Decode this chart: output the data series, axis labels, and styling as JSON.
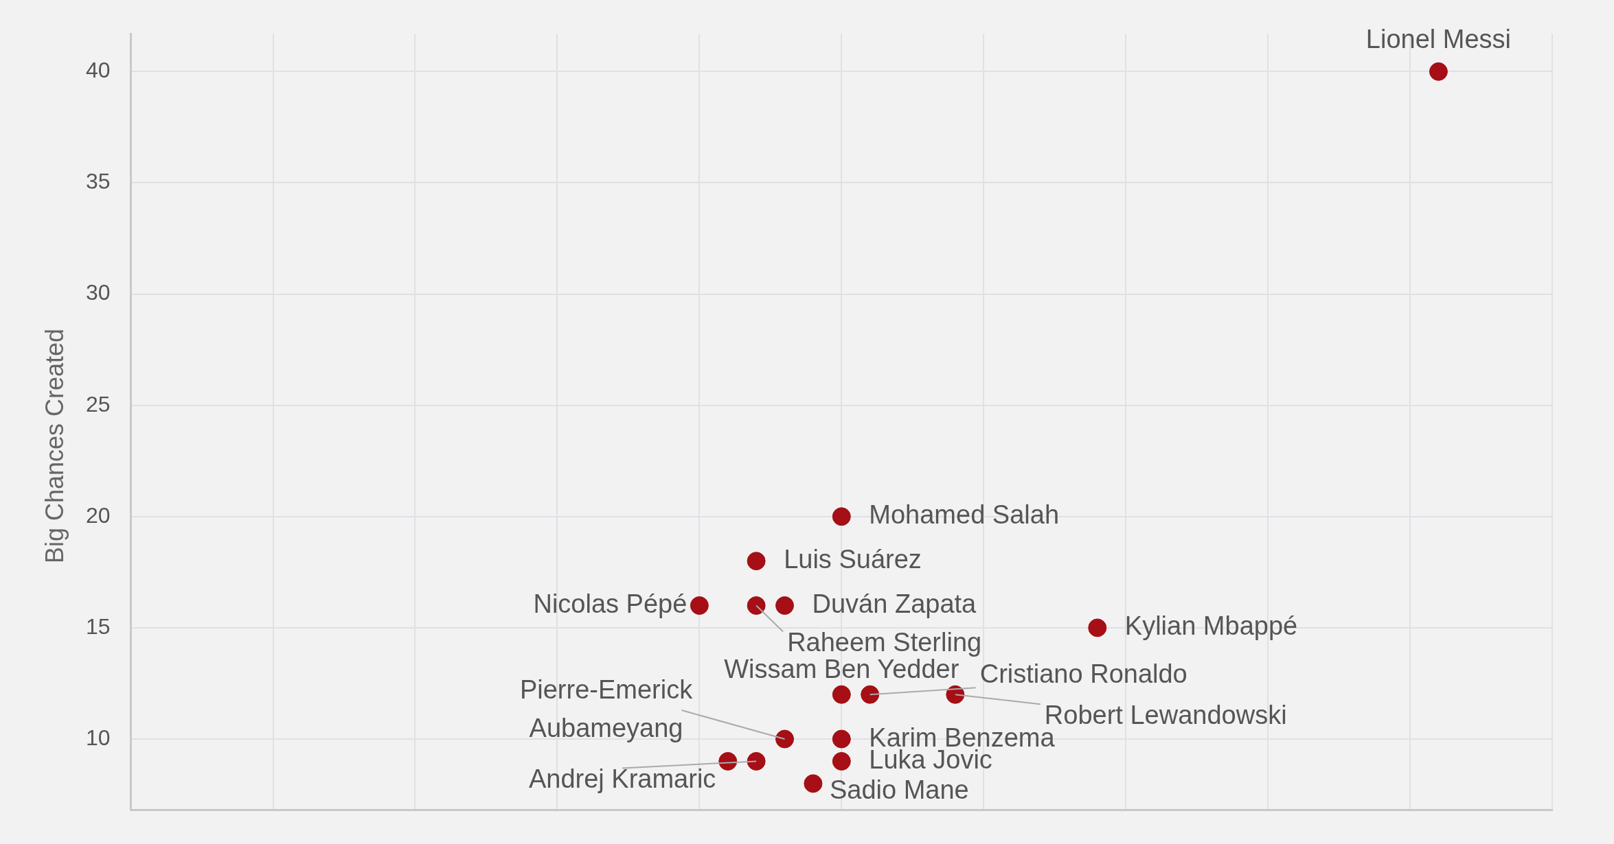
{
  "chart_data": {
    "type": "scatter",
    "ylabel": "Big Chances Created",
    "categories": [
      null,
      null,
      null,
      null,
      null,
      null,
      null,
      null,
      null,
      null,
      null,
      null,
      null,
      null,
      null,
      null,
      null,
      null,
      null,
      null,
      null,
      null,
      null,
      null,
      null,
      null,
      null,
      null,
      null,
      null,
      null,
      null,
      null,
      null,
      null,
      null,
      null,
      null,
      null,
      null,
      null,
      null,
      null,
      null,
      null,
      null,
      null,
      null,
      null,
      null,
      null
    ],
    "series": [
      {
        "name": "Lionel Messi",
        "color": "#a50f15",
        "values": [
          null,
          null,
          null,
          null,
          null,
          null,
          null,
          null,
          null,
          null,
          null,
          null,
          null,
          null,
          null,
          null,
          null,
          null,
          null,
          null,
          null,
          null,
          null,
          null,
          null,
          null,
          null,
          null,
          null,
          null,
          null,
          null,
          null,
          null,
          null,
          null,
          null,
          null,
          null,
          null,
          null,
          null,
          null,
          null,
          null,
          null,
          40,
          null,
          null,
          null,
          null
        ]
      },
      {
        "name": "Mohamed Salah",
        "color": "#a50f15",
        "values": [
          null,
          null,
          null,
          null,
          null,
          null,
          null,
          null,
          null,
          null,
          null,
          null,
          null,
          null,
          null,
          null,
          null,
          null,
          null,
          null,
          null,
          null,
          null,
          null,
          null,
          20,
          null,
          null,
          null,
          null,
          null,
          null,
          null,
          null,
          null,
          null,
          null,
          null,
          null,
          null,
          null,
          null,
          null,
          null,
          null,
          null,
          null,
          null,
          null,
          null,
          null
        ]
      },
      {
        "name": "Luis Suárez",
        "color": "#a50f15",
        "values": [
          null,
          null,
          null,
          null,
          null,
          null,
          null,
          null,
          null,
          null,
          null,
          null,
          null,
          null,
          null,
          null,
          null,
          null,
          null,
          null,
          null,
          null,
          18,
          null,
          null,
          null,
          null,
          null,
          null,
          null,
          null,
          null,
          null,
          null,
          null,
          null,
          null,
          null,
          null,
          null,
          null,
          null,
          null,
          null,
          null,
          null,
          null,
          null,
          null,
          null,
          null
        ]
      },
      {
        "name": "Nicolas Pépé",
        "color": "#a50f15",
        "values": [
          null,
          null,
          null,
          null,
          null,
          null,
          null,
          null,
          null,
          null,
          null,
          null,
          null,
          null,
          null,
          null,
          null,
          null,
          null,
          null,
          16,
          null,
          null,
          null,
          null,
          null,
          null,
          null,
          null,
          null,
          null,
          null,
          null,
          null,
          null,
          null,
          null,
          null,
          null,
          null,
          null,
          null,
          null,
          null,
          null,
          null,
          null,
          null,
          null,
          null,
          null
        ]
      },
      {
        "name": "Raheem Sterling",
        "color": "#a50f15",
        "values": [
          null,
          null,
          null,
          null,
          null,
          null,
          null,
          null,
          null,
          null,
          null,
          null,
          null,
          null,
          null,
          null,
          null,
          null,
          null,
          null,
          null,
          null,
          16,
          null,
          null,
          null,
          null,
          null,
          null,
          null,
          null,
          null,
          null,
          null,
          null,
          null,
          null,
          null,
          null,
          null,
          null,
          null,
          null,
          null,
          null,
          null,
          null,
          null,
          null,
          null,
          null
        ]
      },
      {
        "name": "Duván Zapata",
        "color": "#a50f15",
        "values": [
          null,
          null,
          null,
          null,
          null,
          null,
          null,
          null,
          null,
          null,
          null,
          null,
          null,
          null,
          null,
          null,
          null,
          null,
          null,
          null,
          null,
          null,
          null,
          16,
          null,
          null,
          null,
          null,
          null,
          null,
          null,
          null,
          null,
          null,
          null,
          null,
          null,
          null,
          null,
          null,
          null,
          null,
          null,
          null,
          null,
          null,
          null,
          null,
          null,
          null,
          null
        ]
      },
      {
        "name": "Kylian Mbappé",
        "color": "#a50f15",
        "values": [
          null,
          null,
          null,
          null,
          null,
          null,
          null,
          null,
          null,
          null,
          null,
          null,
          null,
          null,
          null,
          null,
          null,
          null,
          null,
          null,
          null,
          null,
          null,
          null,
          null,
          null,
          null,
          null,
          null,
          null,
          null,
          null,
          null,
          null,
          15,
          null,
          null,
          null,
          null,
          null,
          null,
          null,
          null,
          null,
          null,
          null,
          null,
          null,
          null,
          null,
          null
        ]
      },
      {
        "name": "Wissam Ben Yedder",
        "color": "#a50f15",
        "values": [
          null,
          null,
          null,
          null,
          null,
          null,
          null,
          null,
          null,
          null,
          null,
          null,
          null,
          null,
          null,
          null,
          null,
          null,
          null,
          null,
          null,
          null,
          null,
          null,
          null,
          12,
          null,
          null,
          null,
          null,
          null,
          null,
          null,
          null,
          null,
          null,
          null,
          null,
          null,
          null,
          null,
          null,
          null,
          null,
          null,
          null,
          null,
          null,
          null,
          null,
          null
        ]
      },
      {
        "name": "Cristiano Ronaldo",
        "color": "#a50f15",
        "values": [
          null,
          null,
          null,
          null,
          null,
          null,
          null,
          null,
          null,
          null,
          null,
          null,
          null,
          null,
          null,
          null,
          null,
          null,
          null,
          null,
          null,
          null,
          null,
          null,
          null,
          null,
          12,
          null,
          null,
          null,
          null,
          null,
          null,
          null,
          null,
          null,
          null,
          null,
          null,
          null,
          null,
          null,
          null,
          null,
          null,
          null,
          null,
          null,
          null,
          null,
          null
        ]
      },
      {
        "name": "Robert Lewandowski",
        "color": "#a50f15",
        "values": [
          null,
          null,
          null,
          null,
          null,
          null,
          null,
          null,
          null,
          null,
          null,
          null,
          null,
          null,
          null,
          null,
          null,
          null,
          null,
          null,
          null,
          null,
          null,
          null,
          null,
          null,
          null,
          null,
          null,
          12,
          null,
          null,
          null,
          null,
          null,
          null,
          null,
          null,
          null,
          null,
          null,
          null,
          null,
          null,
          null,
          null,
          null,
          null,
          null,
          null,
          null
        ]
      },
      {
        "name": "Pierre-Emerick Aubameyang",
        "color": "#a50f15",
        "values": [
          null,
          null,
          null,
          null,
          null,
          null,
          null,
          null,
          null,
          null,
          null,
          null,
          null,
          null,
          null,
          null,
          null,
          null,
          null,
          null,
          null,
          null,
          null,
          10,
          null,
          null,
          null,
          null,
          null,
          null,
          null,
          null,
          null,
          null,
          null,
          null,
          null,
          null,
          null,
          null,
          null,
          null,
          null,
          null,
          null,
          null,
          null,
          null,
          null,
          null,
          null
        ]
      },
      {
        "name": "Karim Benzema",
        "color": "#a50f15",
        "values": [
          null,
          null,
          null,
          null,
          null,
          null,
          null,
          null,
          null,
          null,
          null,
          null,
          null,
          null,
          null,
          null,
          null,
          null,
          null,
          null,
          null,
          null,
          null,
          null,
          null,
          10,
          null,
          null,
          null,
          null,
          null,
          null,
          null,
          null,
          null,
          null,
          null,
          null,
          null,
          null,
          null,
          null,
          null,
          null,
          null,
          null,
          null,
          null,
          null,
          null,
          null
        ]
      },
      {
        "name": "Luka Jovic",
        "color": "#a50f15",
        "values": [
          null,
          null,
          null,
          null,
          null,
          null,
          null,
          null,
          null,
          null,
          null,
          null,
          null,
          null,
          null,
          null,
          null,
          null,
          null,
          null,
          null,
          null,
          null,
          null,
          null,
          9,
          null,
          null,
          null,
          null,
          null,
          null,
          null,
          null,
          null,
          null,
          null,
          null,
          null,
          null,
          null,
          null,
          null,
          null,
          null,
          null,
          null,
          null,
          null,
          null,
          null
        ]
      },
      {
        "color": "#a50f15",
        "values": [
          null,
          null,
          null,
          null,
          null,
          null,
          null,
          null,
          null,
          null,
          null,
          null,
          null,
          null,
          null,
          null,
          null,
          null,
          null,
          null,
          null,
          9,
          null,
          null,
          null,
          null,
          null,
          null,
          null,
          null,
          null,
          null,
          null,
          null,
          null,
          null,
          null,
          null,
          null,
          null,
          null,
          null,
          null,
          null,
          null,
          null,
          null,
          null,
          null,
          null,
          null
        ]
      },
      {
        "name": "Andrej Kramaric",
        "color": "#a50f15",
        "values": [
          null,
          null,
          null,
          null,
          null,
          null,
          null,
          null,
          null,
          null,
          null,
          null,
          null,
          null,
          null,
          null,
          null,
          null,
          null,
          null,
          null,
          null,
          9,
          null,
          null,
          null,
          null,
          null,
          null,
          null,
          null,
          null,
          null,
          null,
          null,
          null,
          null,
          null,
          null,
          null,
          null,
          null,
          null,
          null,
          null,
          null,
          null,
          null,
          null,
          null,
          null
        ]
      },
      {
        "name": "Sadio Mane",
        "color": "#a50f15",
        "values": [
          null,
          null,
          null,
          null,
          null,
          null,
          null,
          null,
          null,
          null,
          null,
          null,
          null,
          null,
          null,
          null,
          null,
          null,
          null,
          null,
          null,
          null,
          null,
          null,
          8,
          null,
          null,
          null,
          null,
          null,
          null,
          null,
          null,
          null,
          null,
          null,
          null,
          null,
          null,
          null,
          null,
          null,
          null,
          null,
          null,
          null,
          null,
          null,
          null,
          null,
          null
        ]
      }
    ],
    "ylim": [
      6.8,
      41.7
    ],
    "yticks": [
      10,
      15,
      20,
      25,
      30,
      35,
      40
    ],
    "tick_labels": "y",
    "grid": true,
    "legend": false,
    "marker": "circle"
  }
}
